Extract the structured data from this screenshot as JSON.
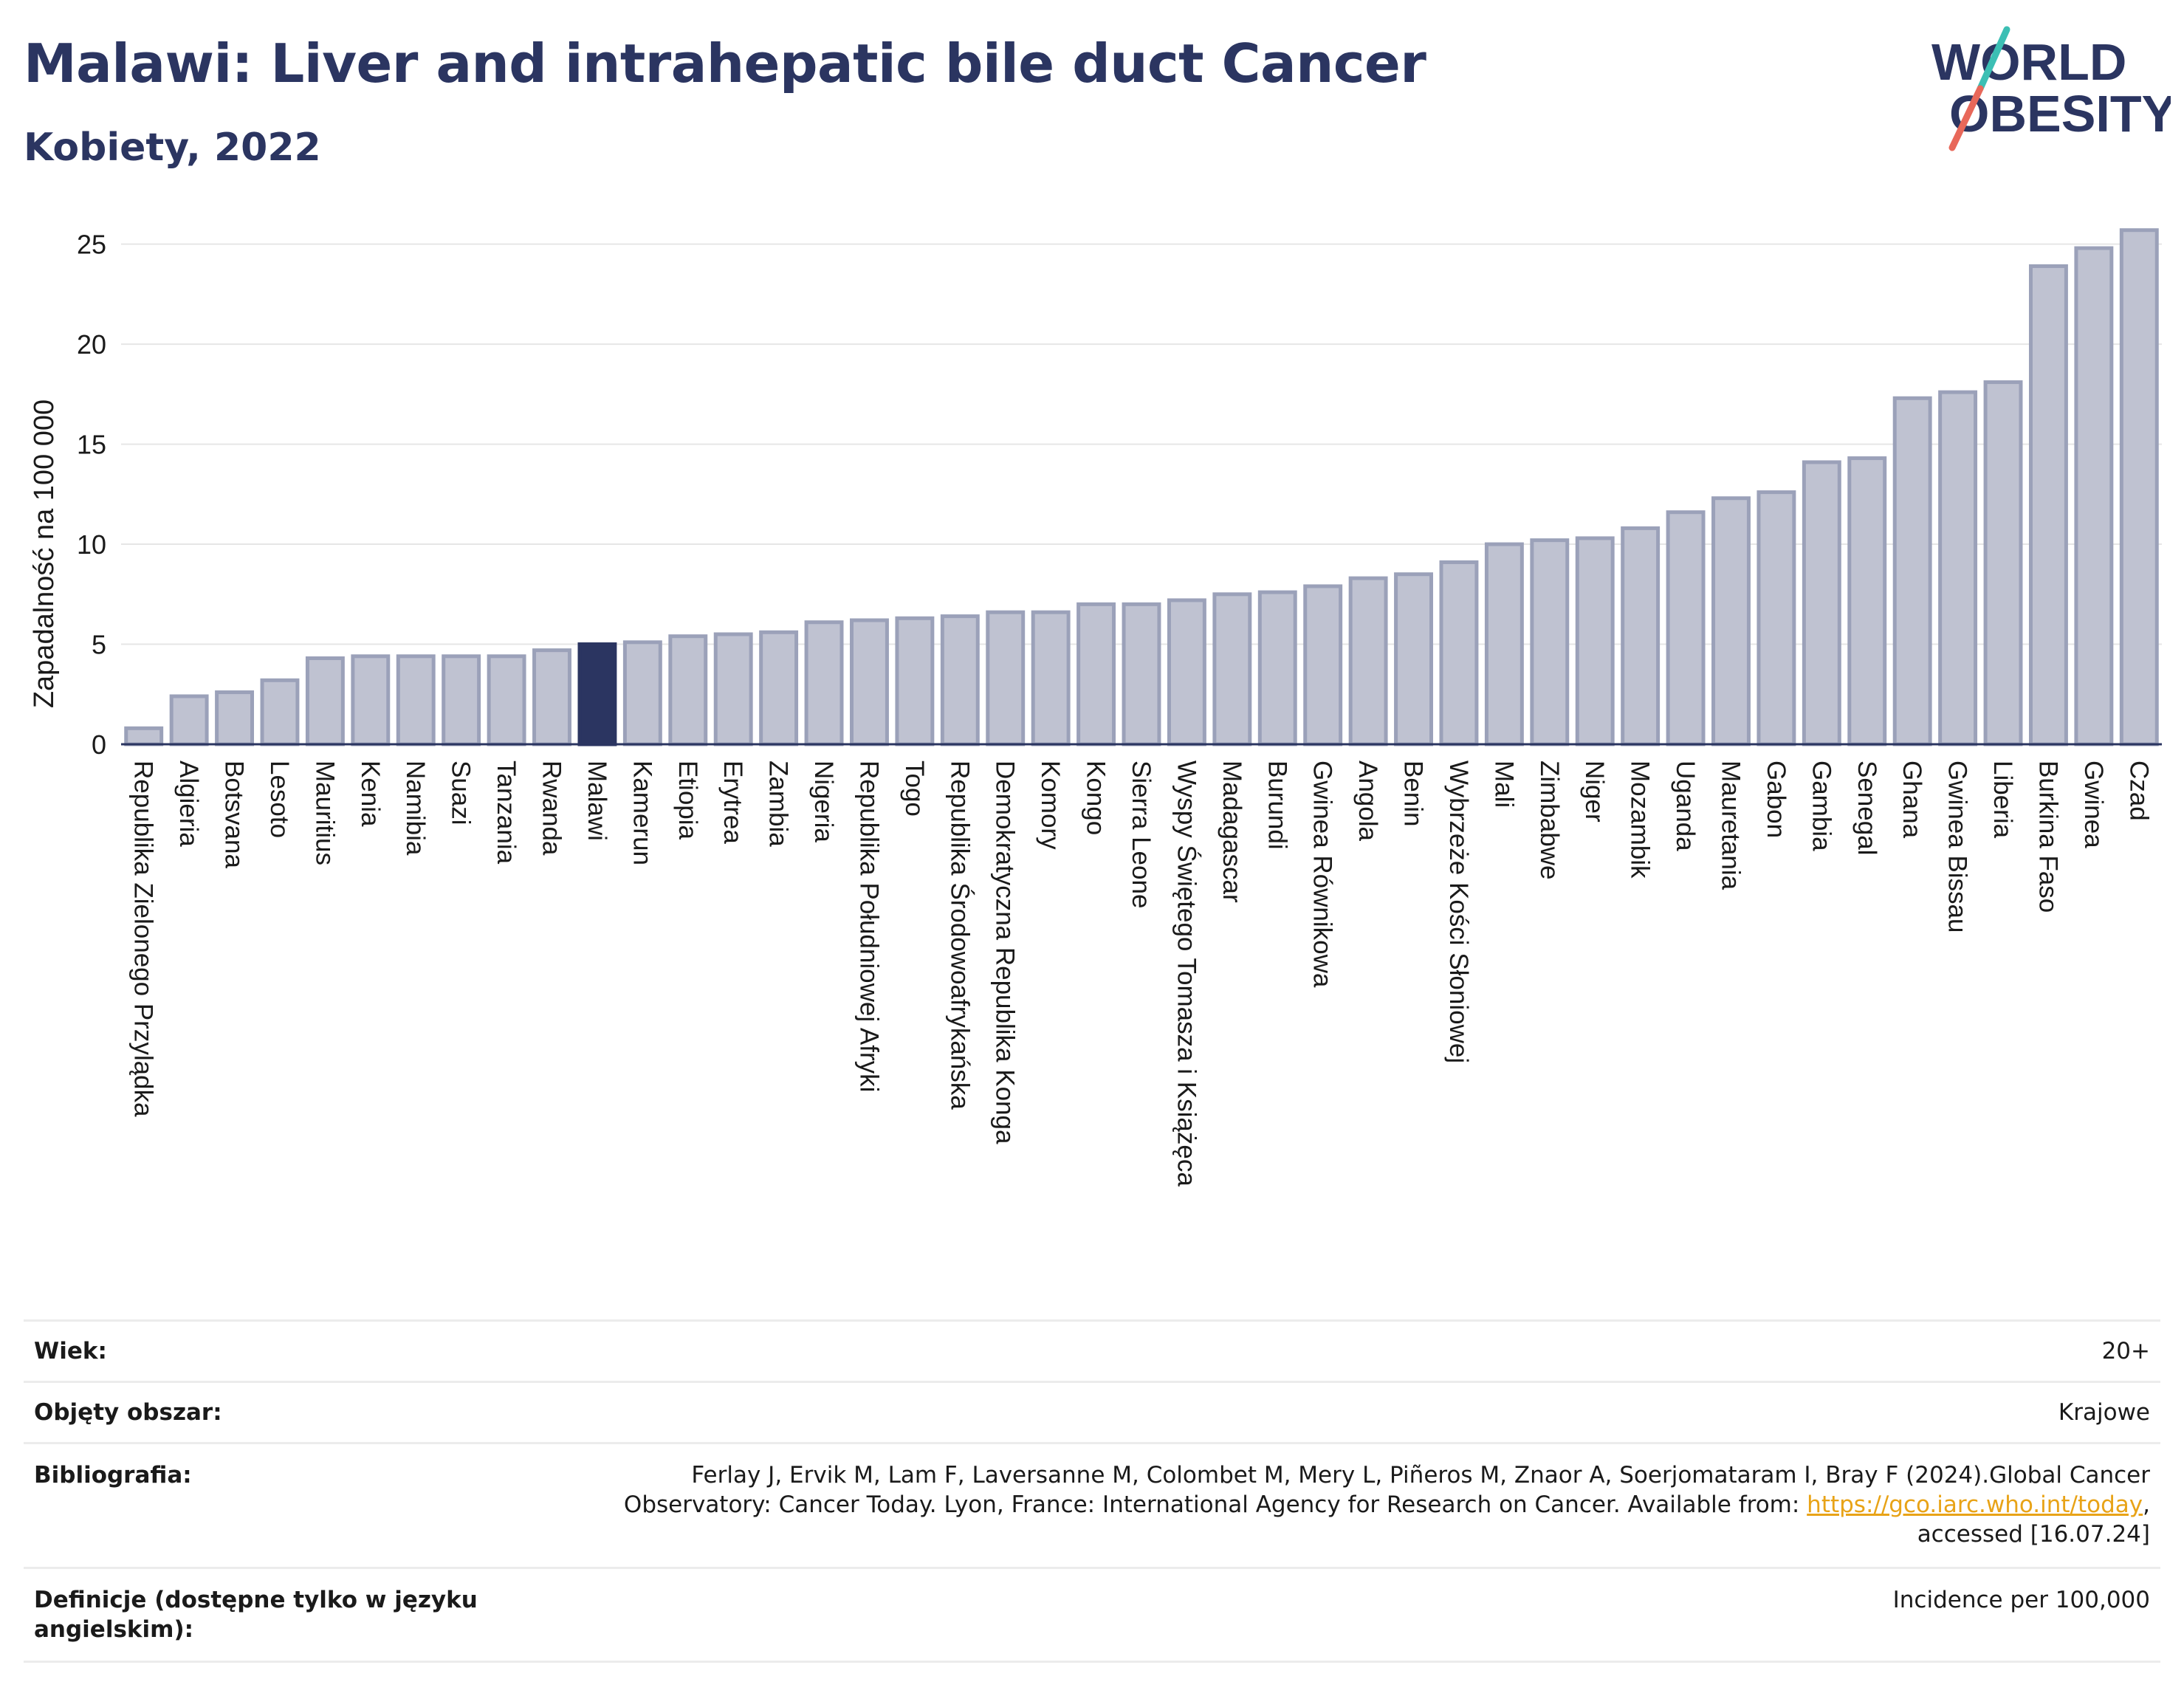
{
  "header": {
    "title": "Malawi: Liver and intrahepatic bile duct Cancer",
    "subtitle": "Kobiety, 2022"
  },
  "logo": {
    "line1": "WORLD",
    "line2": "OBESITY"
  },
  "chart_data": {
    "type": "bar",
    "ylabel": "Zapadalność na 100 000",
    "ylim": [
      0,
      26.5
    ],
    "yticks": [
      0,
      5,
      10,
      15,
      20,
      25
    ],
    "grid": true,
    "highlight": "Malawi",
    "colors": {
      "bar": "#bfc2d1",
      "bar_edge": "#9ba1b9",
      "highlight": "#2b3561",
      "grid": "#e6e6e6"
    },
    "categories": [
      "Republika Zielonego Przylądka",
      "Algieria",
      "Botsvana",
      "Lesoto",
      "Mauritius",
      "Kenia",
      "Namibia",
      "Suazi",
      "Tanzania",
      "Rwanda",
      "Malawi",
      "Kamerun",
      "Etiopia",
      "Erytrea",
      "Zambia",
      "Nigeria",
      "Republika Południowej Afryki",
      "Togo",
      "Republika Środowoafrykańska",
      "Demokratyczna Republika Konga",
      "Komory",
      "Kongo",
      "Sierra Leone",
      "Wyspy Świętego Tomasza i Książęca",
      "Madagascar",
      "Burundi",
      "Gwinea Równikowa",
      "Angola",
      "Benin",
      "Wybrzeże Kości Słoniowej",
      "Mali",
      "Zimbabwe",
      "Niger",
      "Mozambik",
      "Uganda",
      "Mauretania",
      "Gabon",
      "Gambia",
      "Senegal",
      "Ghana",
      "Gwinea Bissau",
      "Liberia",
      "Burkina Faso",
      "Gwinea",
      "Czad"
    ],
    "values": [
      0.8,
      2.4,
      2.6,
      3.2,
      4.3,
      4.4,
      4.4,
      4.4,
      4.4,
      4.7,
      5.0,
      5.1,
      5.4,
      5.5,
      5.6,
      6.1,
      6.2,
      6.3,
      6.4,
      6.6,
      6.6,
      7.0,
      7.0,
      7.2,
      7.5,
      7.6,
      7.9,
      8.3,
      8.5,
      9.1,
      10.0,
      10.2,
      10.3,
      10.8,
      11.6,
      12.3,
      12.6,
      14.1,
      14.3,
      17.3,
      17.6,
      18.1,
      23.9,
      24.8,
      25.7
    ]
  },
  "info": [
    {
      "label": "Wiek:",
      "value": "20+"
    },
    {
      "label": "Objęty obszar:",
      "value": "Krajowe"
    },
    {
      "label": "Bibliografia:",
      "value_line1": "Ferlay J, Ervik M, Lam F, Laversanne M, Colombet M, Mery L, Piñeros M, Znaor A, Soerjomataram I, Bray F (2024).Global Cancer",
      "value_line2_pre": "Observatory: Cancer Today. Lyon, France: International Agency for Research on Cancer. Available from: ",
      "value_link": "https://gco.iarc.who.int/today",
      "value_line2_post": ",",
      "value_line3": "accessed [16.07.24]"
    },
    {
      "label": "Definicje (dostępne tylko w języku angielskim):",
      "value": "Incidence per 100,000"
    }
  ]
}
